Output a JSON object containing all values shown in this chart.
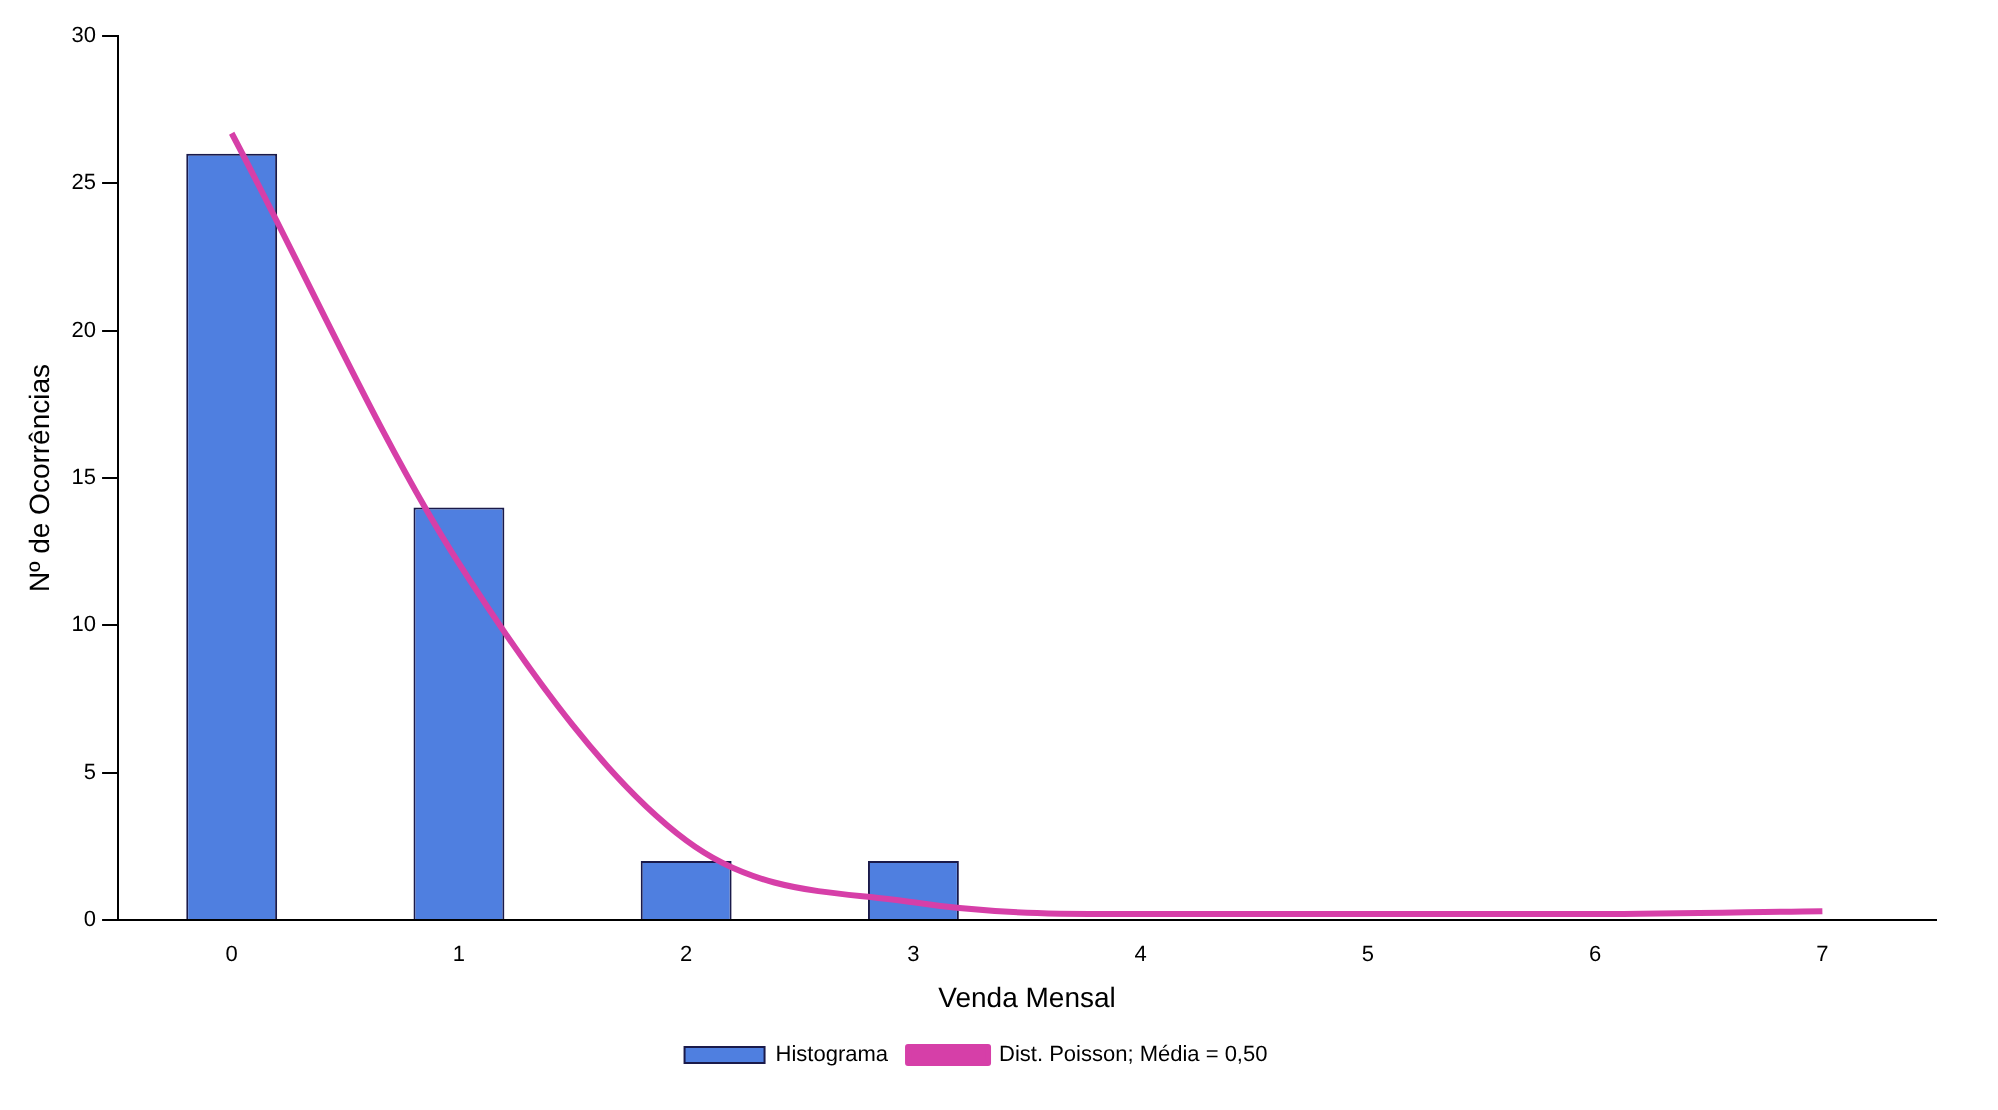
{
  "chart_data": {
    "type": "bar",
    "xlabel": "Venda Mensal",
    "ylabel": "Nº de Ocorrências",
    "categories": [
      "0",
      "1",
      "2",
      "3",
      "4",
      "5",
      "6",
      "7"
    ],
    "series": [
      {
        "name": "Histograma",
        "color": "#4f7fe0",
        "values": [
          26,
          14,
          2,
          2,
          0,
          0,
          0,
          0
        ]
      },
      {
        "name": "Dist. Poisson; Média = 0,50",
        "type": "line",
        "color": "#d63fa8",
        "values": [
          26.7,
          12.1,
          2.7,
          0.6,
          0.2,
          0.2,
          0.2,
          0.3
        ]
      }
    ],
    "ylim": [
      0,
      30
    ],
    "yticks": [
      0,
      5,
      10,
      15,
      20,
      25,
      30
    ],
    "grid": false,
    "legend": "bottom",
    "marker": "none"
  }
}
